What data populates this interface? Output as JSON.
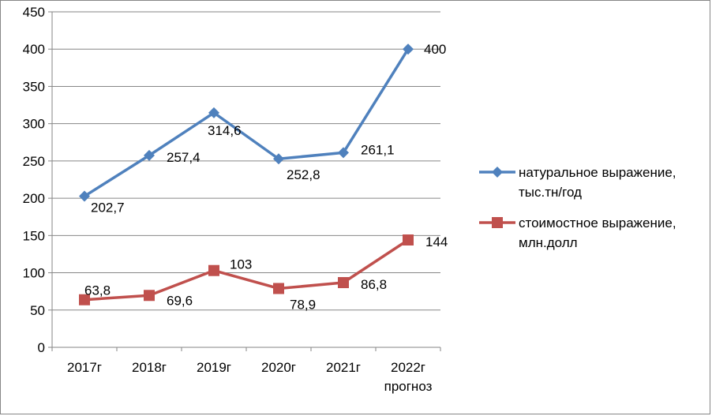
{
  "chart_data": {
    "type": "line",
    "categories": [
      [
        "2017г"
      ],
      [
        "2018г"
      ],
      [
        "2019г"
      ],
      [
        "2020г"
      ],
      [
        "2021г"
      ],
      [
        "2022г",
        "прогноз"
      ]
    ],
    "ylim": [
      0,
      450
    ],
    "yticks": [
      0,
      50,
      100,
      150,
      200,
      250,
      300,
      350,
      400,
      450
    ],
    "grid": true,
    "legend_position": "right",
    "series": [
      {
        "name_lines": [
          "натуральное выражение,",
          "тыс.тн/год"
        ],
        "color": "#4F81BD",
        "marker": "diamond",
        "values": [
          202.7,
          257.4,
          314.6,
          252.8,
          261.1,
          400
        ],
        "labels": [
          "202,7",
          "257,4",
          "314,6",
          "252,8",
          "261,1",
          "400"
        ]
      },
      {
        "name_lines": [
          "стоимостное выражение,",
          "млн.долл"
        ],
        "color": "#C0504D",
        "marker": "square",
        "values": [
          63.8,
          69.6,
          103,
          78.9,
          86.8,
          144
        ],
        "labels": [
          "63,8",
          "69,6",
          "103",
          "78,9",
          "86,8",
          "144"
        ]
      }
    ]
  }
}
